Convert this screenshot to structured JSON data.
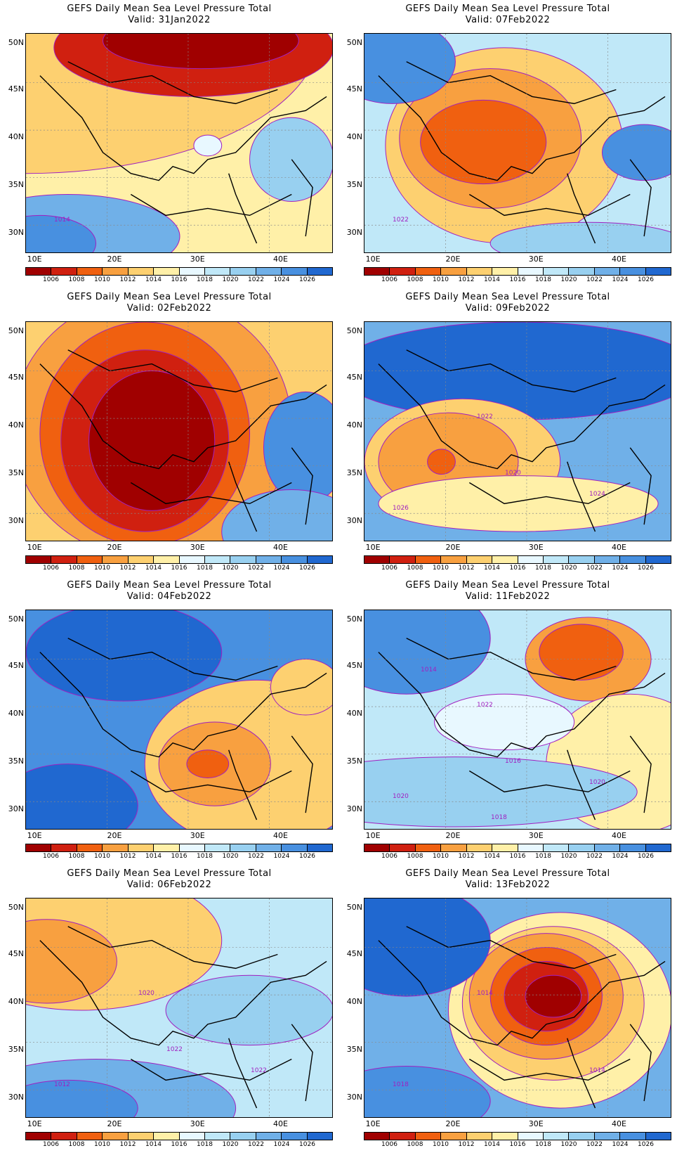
{
  "panels": [
    {
      "title": "GEFS Daily Mean Sea Level Pressure Total",
      "valid": "Valid: 31Jan2022"
    },
    {
      "title": "GEFS Daily Mean Sea Level Pressure Total",
      "valid": "Valid: 07Feb2022"
    },
    {
      "title": "GEFS Daily Mean Sea Level Pressure Total",
      "valid": "Valid: 02Feb2022"
    },
    {
      "title": "GEFS Daily Mean Sea Level Pressure Total",
      "valid": "Valid: 09Feb2022"
    },
    {
      "title": "GEFS Daily Mean Sea Level Pressure Total",
      "valid": "Valid: 04Feb2022"
    },
    {
      "title": "GEFS Daily Mean Sea Level Pressure Total",
      "valid": "Valid: 11Feb2022"
    },
    {
      "title": "GEFS Daily Mean Sea Level Pressure Total",
      "valid": "Valid: 06Feb2022"
    },
    {
      "title": "GEFS Daily Mean Sea Level Pressure Total",
      "valid": "Valid: 13Feb2022"
    }
  ],
  "lat_labels": [
    "50N",
    "45N",
    "40N",
    "35N",
    "30N"
  ],
  "lon_labels": [
    "10E",
    "20E",
    "30E",
    "40E"
  ],
  "colorbar": {
    "labels": [
      "1006",
      "1008",
      "1010",
      "1012",
      "1014",
      "1016",
      "1018",
      "1020",
      "1022",
      "1024",
      "1026"
    ],
    "colors": [
      "#a00000",
      "#d02010",
      "#f06010",
      "#f8a040",
      "#fdd070",
      "#fff0a8",
      "#e8f8ff",
      "#c0e8f8",
      "#98d0f0",
      "#70b0e8",
      "#4890e0",
      "#2068d0"
    ]
  },
  "contour_labels": {
    "p0": [
      "1014"
    ],
    "p1": [
      "1022"
    ],
    "p3": [
      "1026",
      "1024",
      "1022",
      "1020"
    ],
    "p5": [
      "1020",
      "1020",
      "1022",
      "1016",
      "1014",
      "1018"
    ],
    "p6": [
      "1012",
      "1022",
      "1020",
      "1022"
    ],
    "p7": [
      "1018",
      "1014",
      "1014"
    ]
  },
  "icons": {
    "coast": "coastline-lines",
    "grid": "graticule-lines"
  }
}
